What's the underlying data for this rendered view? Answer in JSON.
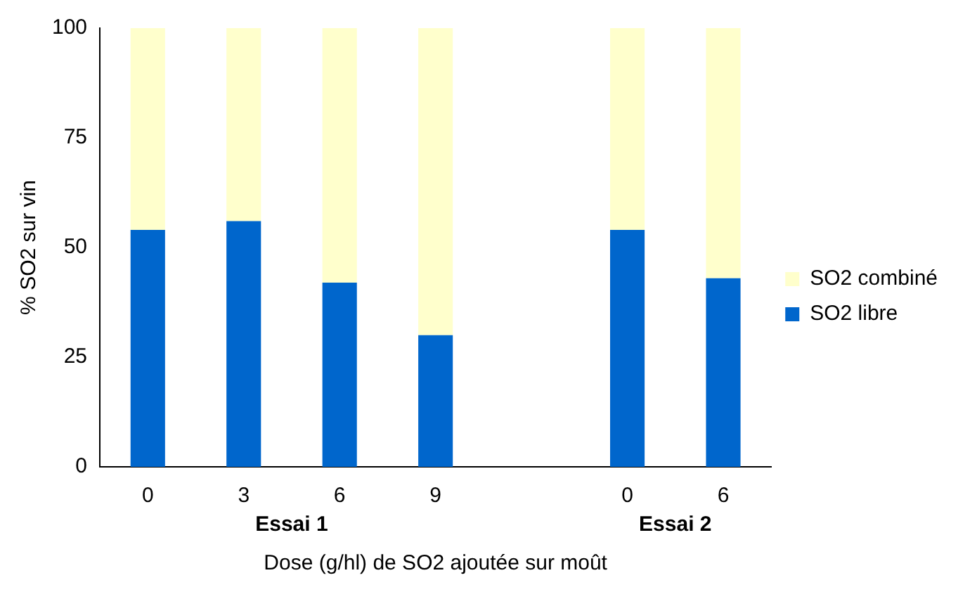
{
  "chart_data": {
    "type": "bar",
    "stacked": true,
    "xlabel": "Dose (g/hl) de SO2 ajoutée sur moût",
    "ylabel": "% SO2 sur vin",
    "categories": [
      "0",
      "3",
      "6",
      "9",
      null,
      "0",
      "6"
    ],
    "series": [
      {
        "name": "SO2 libre",
        "color": "#0066cc",
        "values": [
          54,
          56,
          42,
          30,
          null,
          54,
          43
        ]
      },
      {
        "name": "SO2 combiné",
        "color": "#ffffcc",
        "values": [
          46,
          44,
          58,
          70,
          null,
          46,
          57
        ]
      }
    ],
    "ylim": [
      0,
      100
    ],
    "yticks": [
      0,
      25,
      50,
      75,
      100
    ],
    "grid": false,
    "legend": "right",
    "annotations": [
      "Essai 1",
      "Essai 2"
    ]
  }
}
